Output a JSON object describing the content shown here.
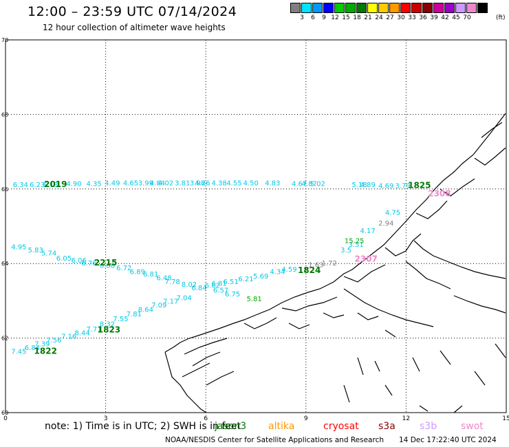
{
  "header": {
    "title": "12:00 – 23:59 UTC 07/14/2024",
    "subtitle": "12 hour collection of altimeter wave heights"
  },
  "colorbar": {
    "colors": [
      "#7f7f7f",
      "#00e5ff",
      "#0099ff",
      "#0000ff",
      "#00cc00",
      "#00aa00",
      "#007700",
      "#ffff00",
      "#ffcc00",
      "#ff9900",
      "#ff0000",
      "#cc0000",
      "#880000",
      "#cc0099",
      "#9900cc",
      "#cc99ff",
      "#ee88cc",
      "#000000"
    ],
    "labels": [
      "3",
      "6",
      "9",
      "12",
      "15",
      "18",
      "21",
      "24",
      "27",
      "30",
      "33",
      "36",
      "39",
      "42",
      "45",
      "70"
    ],
    "unit": "(ft)"
  },
  "axes": {
    "lon_labels": [
      "0",
      "3",
      "6",
      "9",
      "12",
      "15"
    ],
    "lat_labels": [
      "70",
      "68",
      "66",
      "64",
      "62",
      "60"
    ]
  },
  "tracks": [
    {
      "color": "#00c8e6",
      "labels": [
        {
          "t": "6.34",
          "lon": 0.45,
          "lat": 66.05
        },
        {
          "t": "6.23",
          "lon": 0.95,
          "lat": 66.05
        },
        {
          "t": "6.13",
          "lon": 1.35,
          "lat": 66.05
        },
        {
          "t": "4.90",
          "lon": 2.05,
          "lat": 66.08
        },
        {
          "t": "4.35",
          "lon": 2.65,
          "lat": 66.08
        },
        {
          "t": "4.49",
          "lon": 3.2,
          "lat": 66.1
        },
        {
          "t": "4.65",
          "lon": 3.75,
          "lat": 66.1
        },
        {
          "t": "3.99",
          "lon": 4.2,
          "lat": 66.1
        },
        {
          "t": "4.84",
          "lon": 4.55,
          "lat": 66.1
        },
        {
          "t": "4.02",
          "lon": 4.8,
          "lat": 66.1
        },
        {
          "t": "3.81",
          "lon": 5.3,
          "lat": 66.1
        },
        {
          "t": "3.98",
          "lon": 5.75,
          "lat": 66.1
        },
        {
          "t": "4.26",
          "lon": 5.9,
          "lat": 66.1
        },
        {
          "t": "4.38",
          "lon": 6.4,
          "lat": 66.1
        },
        {
          "t": "4.55",
          "lon": 6.85,
          "lat": 66.1
        },
        {
          "t": "4.50",
          "lon": 7.35,
          "lat": 66.1
        },
        {
          "t": "4.83",
          "lon": 8.0,
          "lat": 66.1
        },
        {
          "t": "4.67",
          "lon": 8.8,
          "lat": 66.08
        },
        {
          "t": "4.87",
          "lon": 9.1,
          "lat": 66.08
        },
        {
          "t": "5.02",
          "lon": 9.35,
          "lat": 66.08
        },
        {
          "t": "5.18",
          "lon": 10.6,
          "lat": 66.05
        },
        {
          "t": "4.89",
          "lon": 10.85,
          "lat": 66.05
        },
        {
          "t": "4.69",
          "lon": 11.4,
          "lat": 66.02
        },
        {
          "t": "3.79",
          "lon": 11.9,
          "lat": 66.02
        }
      ]
    },
    {
      "color": "#00c8e6",
      "labels": [
        {
          "t": "4.95",
          "lon": 0.4,
          "lat": 64.38
        },
        {
          "t": "5.83",
          "lon": 0.9,
          "lat": 64.3
        },
        {
          "t": "5.74",
          "lon": 1.3,
          "lat": 64.22
        },
        {
          "t": "6.05",
          "lon": 1.75,
          "lat": 64.08
        },
        {
          "t": "6.06",
          "lon": 2.2,
          "lat": 64.02
        },
        {
          "t": "6.76",
          "lon": 2.5,
          "lat": 63.95
        },
        {
          "t": "6.88",
          "lon": 3.05,
          "lat": 63.88
        },
        {
          "t": "6.72",
          "lon": 3.55,
          "lat": 63.82
        },
        {
          "t": "6.89",
          "lon": 3.95,
          "lat": 63.72
        },
        {
          "t": "6.81",
          "lon": 4.35,
          "lat": 63.65
        },
        {
          "t": "6.48",
          "lon": 4.75,
          "lat": 63.55
        },
        {
          "t": "7.78",
          "lon": 5.0,
          "lat": 63.45
        },
        {
          "t": "8.02",
          "lon": 5.5,
          "lat": 63.38
        },
        {
          "t": "6.84",
          "lon": 5.8,
          "lat": 63.28
        },
        {
          "t": "6.62",
          "lon": 6.2,
          "lat": 63.35
        },
        {
          "t": "6.81",
          "lon": 6.4,
          "lat": 63.4
        },
        {
          "t": "6.51",
          "lon": 6.75,
          "lat": 63.45
        },
        {
          "t": "6.21",
          "lon": 7.2,
          "lat": 63.52
        },
        {
          "t": "6.57",
          "lon": 6.45,
          "lat": 63.22
        },
        {
          "t": "6.75",
          "lon": 6.8,
          "lat": 63.12
        },
        {
          "t": "5.69",
          "lon": 7.65,
          "lat": 63.6
        },
        {
          "t": "4.34",
          "lon": 8.15,
          "lat": 63.72
        },
        {
          "t": "4.59",
          "lon": 8.5,
          "lat": 63.78
        },
        {
          "t": "3.5",
          "lon": 10.2,
          "lat": 64.3
        },
        {
          "t": "3.51",
          "lon": 10.5,
          "lat": 64.45
        },
        {
          "t": "4.17",
          "lon": 10.85,
          "lat": 64.82
        },
        {
          "t": "4.75",
          "lon": 11.6,
          "lat": 65.3
        }
      ]
    },
    {
      "color": "#00c8e6",
      "labels": [
        {
          "t": "7.45",
          "lon": 0.4,
          "lat": 61.58
        },
        {
          "t": "6.84",
          "lon": 0.8,
          "lat": 61.68
        },
        {
          "t": "7.39",
          "lon": 1.1,
          "lat": 61.78
        },
        {
          "t": "7.56",
          "lon": 1.45,
          "lat": 61.88
        },
        {
          "t": "7.16",
          "lon": 1.9,
          "lat": 61.98
        },
        {
          "t": "8.44",
          "lon": 2.3,
          "lat": 62.08
        },
        {
          "t": "7.71",
          "lon": 2.65,
          "lat": 62.18
        },
        {
          "t": "8.32",
          "lon": 3.05,
          "lat": 62.32
        },
        {
          "t": "7.55",
          "lon": 3.45,
          "lat": 62.45
        },
        {
          "t": "7.81",
          "lon": 3.85,
          "lat": 62.58
        },
        {
          "t": "8.64",
          "lon": 4.2,
          "lat": 62.7
        },
        {
          "t": "7.09",
          "lon": 4.6,
          "lat": 62.82
        },
        {
          "t": "7.17",
          "lon": 4.95,
          "lat": 62.92
        },
        {
          "t": "7.04",
          "lon": 5.35,
          "lat": 63.02
        }
      ]
    },
    {
      "color": "#808080",
      "labels": [
        {
          "t": "2.94",
          "lon": 11.4,
          "lat": 65.02
        },
        {
          "t": "1.63",
          "lon": 9.3,
          "lat": 63.9
        },
        {
          "t": "1.72",
          "lon": 9.7,
          "lat": 63.95
        }
      ]
    },
    {
      "color": "#00aa00",
      "labels": [
        {
          "t": "15.25",
          "lon": 10.45,
          "lat": 64.55
        },
        {
          "t": "5.81",
          "lon": 7.45,
          "lat": 62.99
        }
      ]
    }
  ],
  "passes": [
    {
      "t": "2019",
      "lon": 1.5,
      "lat": 66.05,
      "color": "#007700"
    },
    {
      "t": "2215",
      "lon": 3.0,
      "lat": 63.95,
      "color": "#007700"
    },
    {
      "t": "1823",
      "lon": 3.1,
      "lat": 62.15,
      "color": "#007700"
    },
    {
      "t": "1822",
      "lon": 1.2,
      "lat": 61.58,
      "color": "#007700"
    },
    {
      "t": "1824",
      "lon": 9.1,
      "lat": 63.75,
      "color": "#007700"
    },
    {
      "t": "2307",
      "lon": 10.8,
      "lat": 64.05,
      "color": "#ee88cc"
    },
    {
      "t": "2308",
      "lon": 13.0,
      "lat": 65.8,
      "color": "#ee88cc"
    },
    {
      "t": "1825",
      "lon": 12.4,
      "lat": 66.02,
      "color": "#007700"
    }
  ],
  "footer": {
    "note": "note:  1) Time is in UTC; 2) SWH is in feet",
    "satellites": [
      {
        "name": "jason3",
        "color": "#007700"
      },
      {
        "name": "altika",
        "color": "#ff9900"
      },
      {
        "name": "cryosat",
        "color": "#ff0000"
      },
      {
        "name": "s3a",
        "color": "#880000"
      },
      {
        "name": "s3b",
        "color": "#cc99ff"
      },
      {
        "name": "swot",
        "color": "#ee88cc"
      }
    ],
    "credit": "NOAA/NESDIS Center for Satellite Applications and Research",
    "timestamp": "14 Dec 17:22:40 UTC 2024"
  }
}
